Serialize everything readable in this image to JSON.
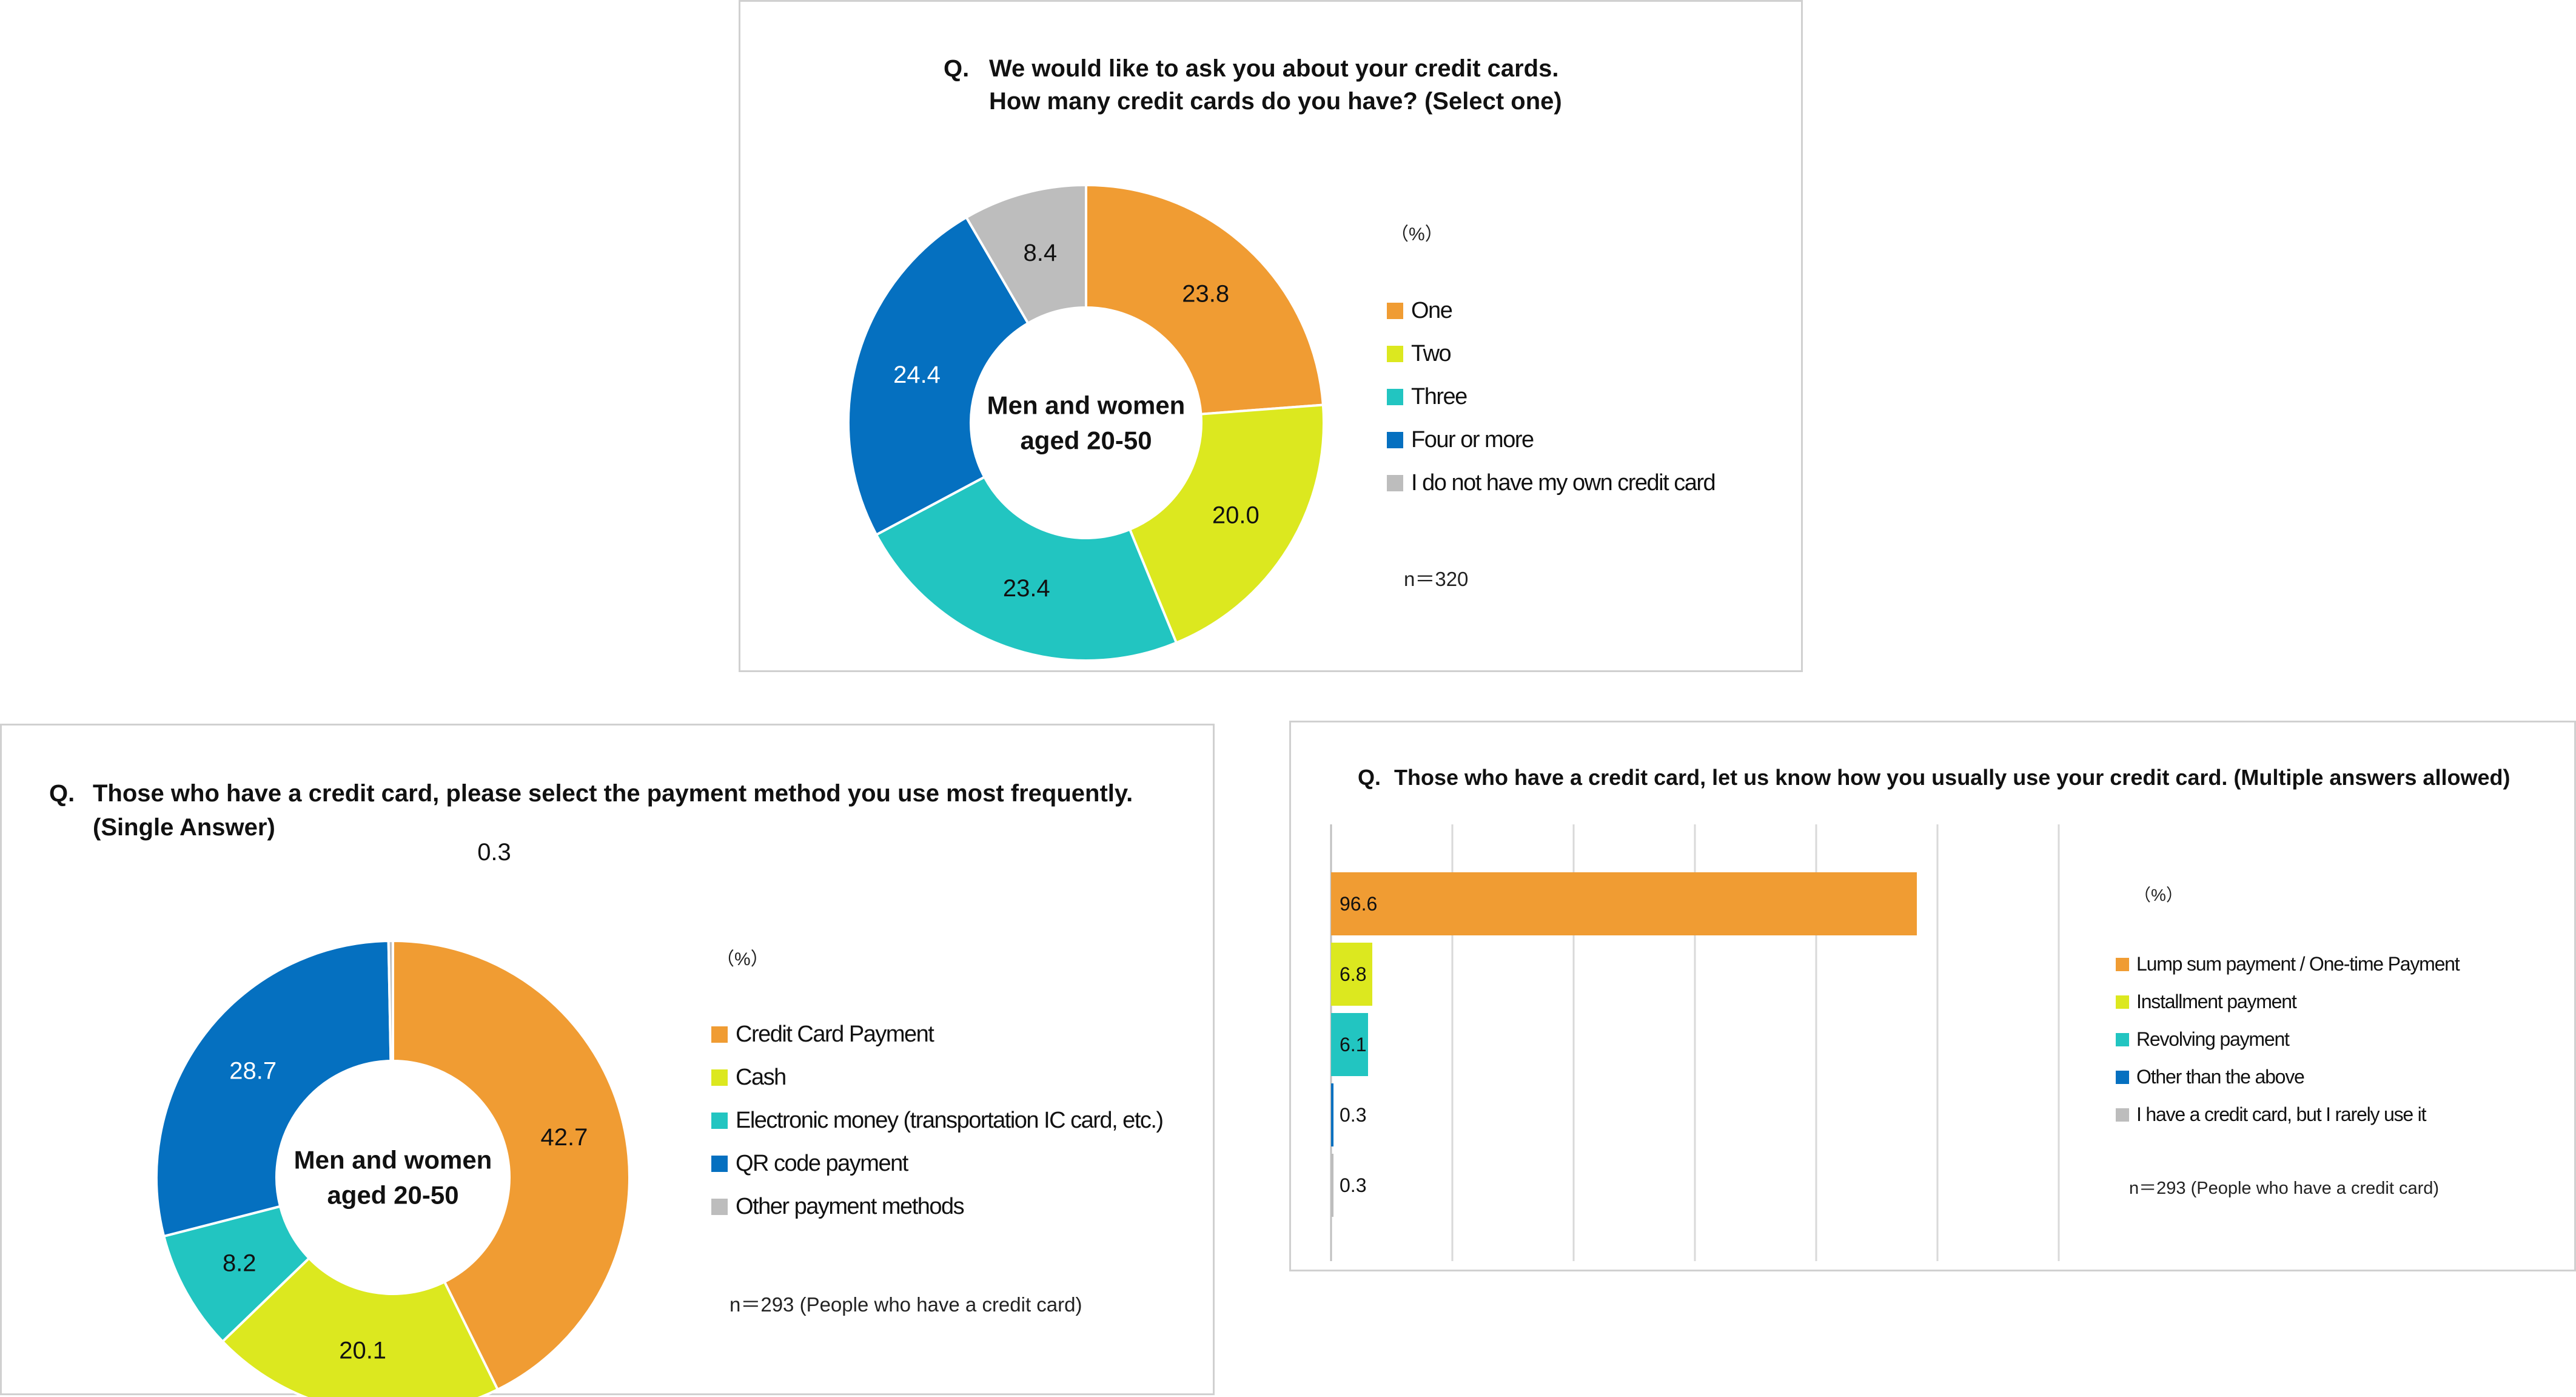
{
  "colors": {
    "orange": "#F09C33",
    "yellowgreen": "#DCE81F",
    "teal": "#22C5C1",
    "blue": "#0570C0",
    "gray": "#BDBDBD",
    "gridline": "#d9d9d9",
    "axis": "#bfbfbf"
  },
  "chart_data": [
    {
      "type": "pie",
      "donut": true,
      "question_prefix": "Q.",
      "title_lines": [
        "We would like to ask you about your credit cards.",
        "How many credit cards do you have? (Select one)"
      ],
      "center_label_lines": [
        "Men and women",
        "aged 20-50"
      ],
      "unit": "（%）",
      "sample_note": "n＝320",
      "legend_position": "right",
      "slices": [
        {
          "label": "One",
          "value": 23.8,
          "display": "23.8",
          "color": "#F09C33",
          "label_color": "#111111"
        },
        {
          "label": "Two",
          "value": 20.0,
          "display": "20.0",
          "color": "#DCE81F",
          "label_color": "#111111"
        },
        {
          "label": "Three",
          "value": 23.4,
          "display": "23.4",
          "color": "#22C5C1",
          "label_color": "#111111"
        },
        {
          "label": "Four or more",
          "value": 24.4,
          "display": "24.4",
          "color": "#0570C0",
          "label_color": "#ffffff"
        },
        {
          "label": "I do not have my own credit card",
          "value": 8.4,
          "display": "8.4",
          "color": "#BDBDBD",
          "label_color": "#111111"
        }
      ]
    },
    {
      "type": "pie",
      "donut": true,
      "question_prefix": "Q.",
      "title_lines": [
        "Those who have a credit card, please select the payment method you use most frequently.",
        "(Single Answer)"
      ],
      "center_label_lines": [
        "Men and women",
        "aged 20-50"
      ],
      "unit": "（%）",
      "sample_note": "n＝293 (People who have a credit card)",
      "legend_position": "right",
      "slices": [
        {
          "label": "Credit Card Payment",
          "value": 42.7,
          "display": "42.7",
          "color": "#F09C33",
          "label_color": "#111111"
        },
        {
          "label": "Cash",
          "value": 20.1,
          "display": "20.1",
          "color": "#DCE81F",
          "label_color": "#111111"
        },
        {
          "label": "Electronic money (transportation IC card, etc.)",
          "value": 8.2,
          "display": "8.2",
          "color": "#22C5C1",
          "label_color": "#111111"
        },
        {
          "label": "QR code payment",
          "value": 28.7,
          "display": "28.7",
          "color": "#0570C0",
          "label_color": "#ffffff"
        },
        {
          "label": "Other payment methods",
          "value": 0.3,
          "display": "0.3",
          "color": "#BDBDBD",
          "label_color": "#111111"
        }
      ]
    },
    {
      "type": "bar",
      "orientation": "horizontal",
      "question_prefix": "Q.",
      "title_lines": [
        "Those who have a credit card, let us know how you usually use your credit card.  (Multiple answers allowed)"
      ],
      "unit": "（%）",
      "sample_note": "n＝293 (People who have a credit card)",
      "legend_position": "right",
      "xlim": [
        0,
        120
      ],
      "grid": true,
      "categories": [
        "Lump sum payment / One-time Payment",
        "Installment payment",
        "Revolving payment",
        "Other than the above",
        "I have a credit card, but I rarely use it"
      ],
      "values": [
        96.6,
        6.8,
        6.1,
        0.3,
        0.3
      ],
      "labels": [
        "96.6",
        "6.8",
        "6.1",
        "0.3",
        "0.3"
      ],
      "bar_colors": [
        "#F09C33",
        "#DCE81F",
        "#22C5C1",
        "#0570C0",
        "#BDBDBD"
      ]
    }
  ]
}
